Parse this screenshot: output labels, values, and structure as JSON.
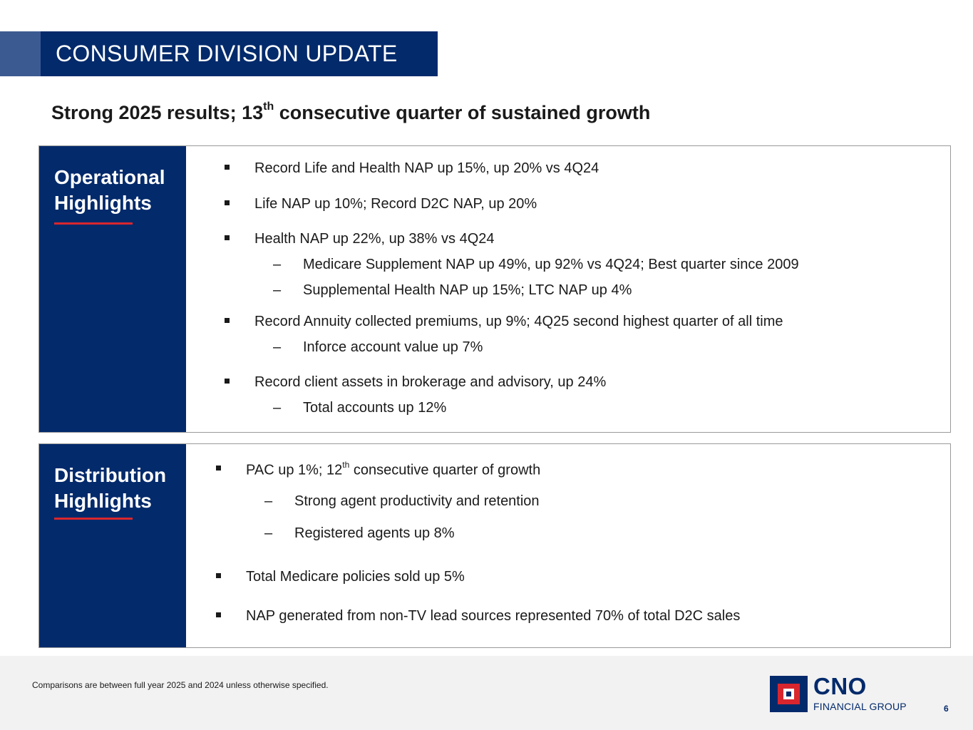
{
  "header": {
    "title": "CONSUMER DIVISION UPDATE",
    "subtitle_pre": "Strong 2025 results; 13",
    "subtitle_sup": "th",
    "subtitle_post": " consecutive quarter of sustained growth"
  },
  "operational": {
    "title_line1": "Operational",
    "title_line2": "Highlights",
    "items": [
      "Record Life and Health NAP up 15%, up 20% vs 4Q24",
      "Life NAP up 10%; Record D2C NAP, up 20%",
      "Health NAP up 22%, up 38% vs 4Q24",
      "Medicare Supplement NAP up 49%, up 92% vs 4Q24; Best quarter since 2009",
      "Supplemental Health NAP up 15%; LTC NAP up 4%",
      "Record Annuity collected premiums, up 9%; 4Q25 second highest quarter of all time",
      "Inforce account value up 7%",
      "Record client assets in brokerage and advisory, up 24%",
      "Total accounts up 12%"
    ]
  },
  "distribution": {
    "title_line1": "Distribution",
    "title_line2": "Highlights",
    "item0_pre": "PAC up 1%; 12",
    "item0_sup": "th",
    "item0_post": " consecutive quarter of growth",
    "items": [
      "Strong agent productivity and retention",
      "Registered agents up 8%",
      "Total Medicare policies sold up 5%",
      "NAP generated from non-TV lead sources represented 70% of total D2C sales"
    ]
  },
  "footer": {
    "note": "Comparisons are between full year 2025 and 2024 unless otherwise specified.",
    "logo_main": "CNO",
    "logo_sub": "FINANCIAL GROUP",
    "page_number": "6"
  },
  "colors": {
    "navy": "#032a6b",
    "accent_blue": "#3c5a92",
    "red": "#d9262e"
  }
}
